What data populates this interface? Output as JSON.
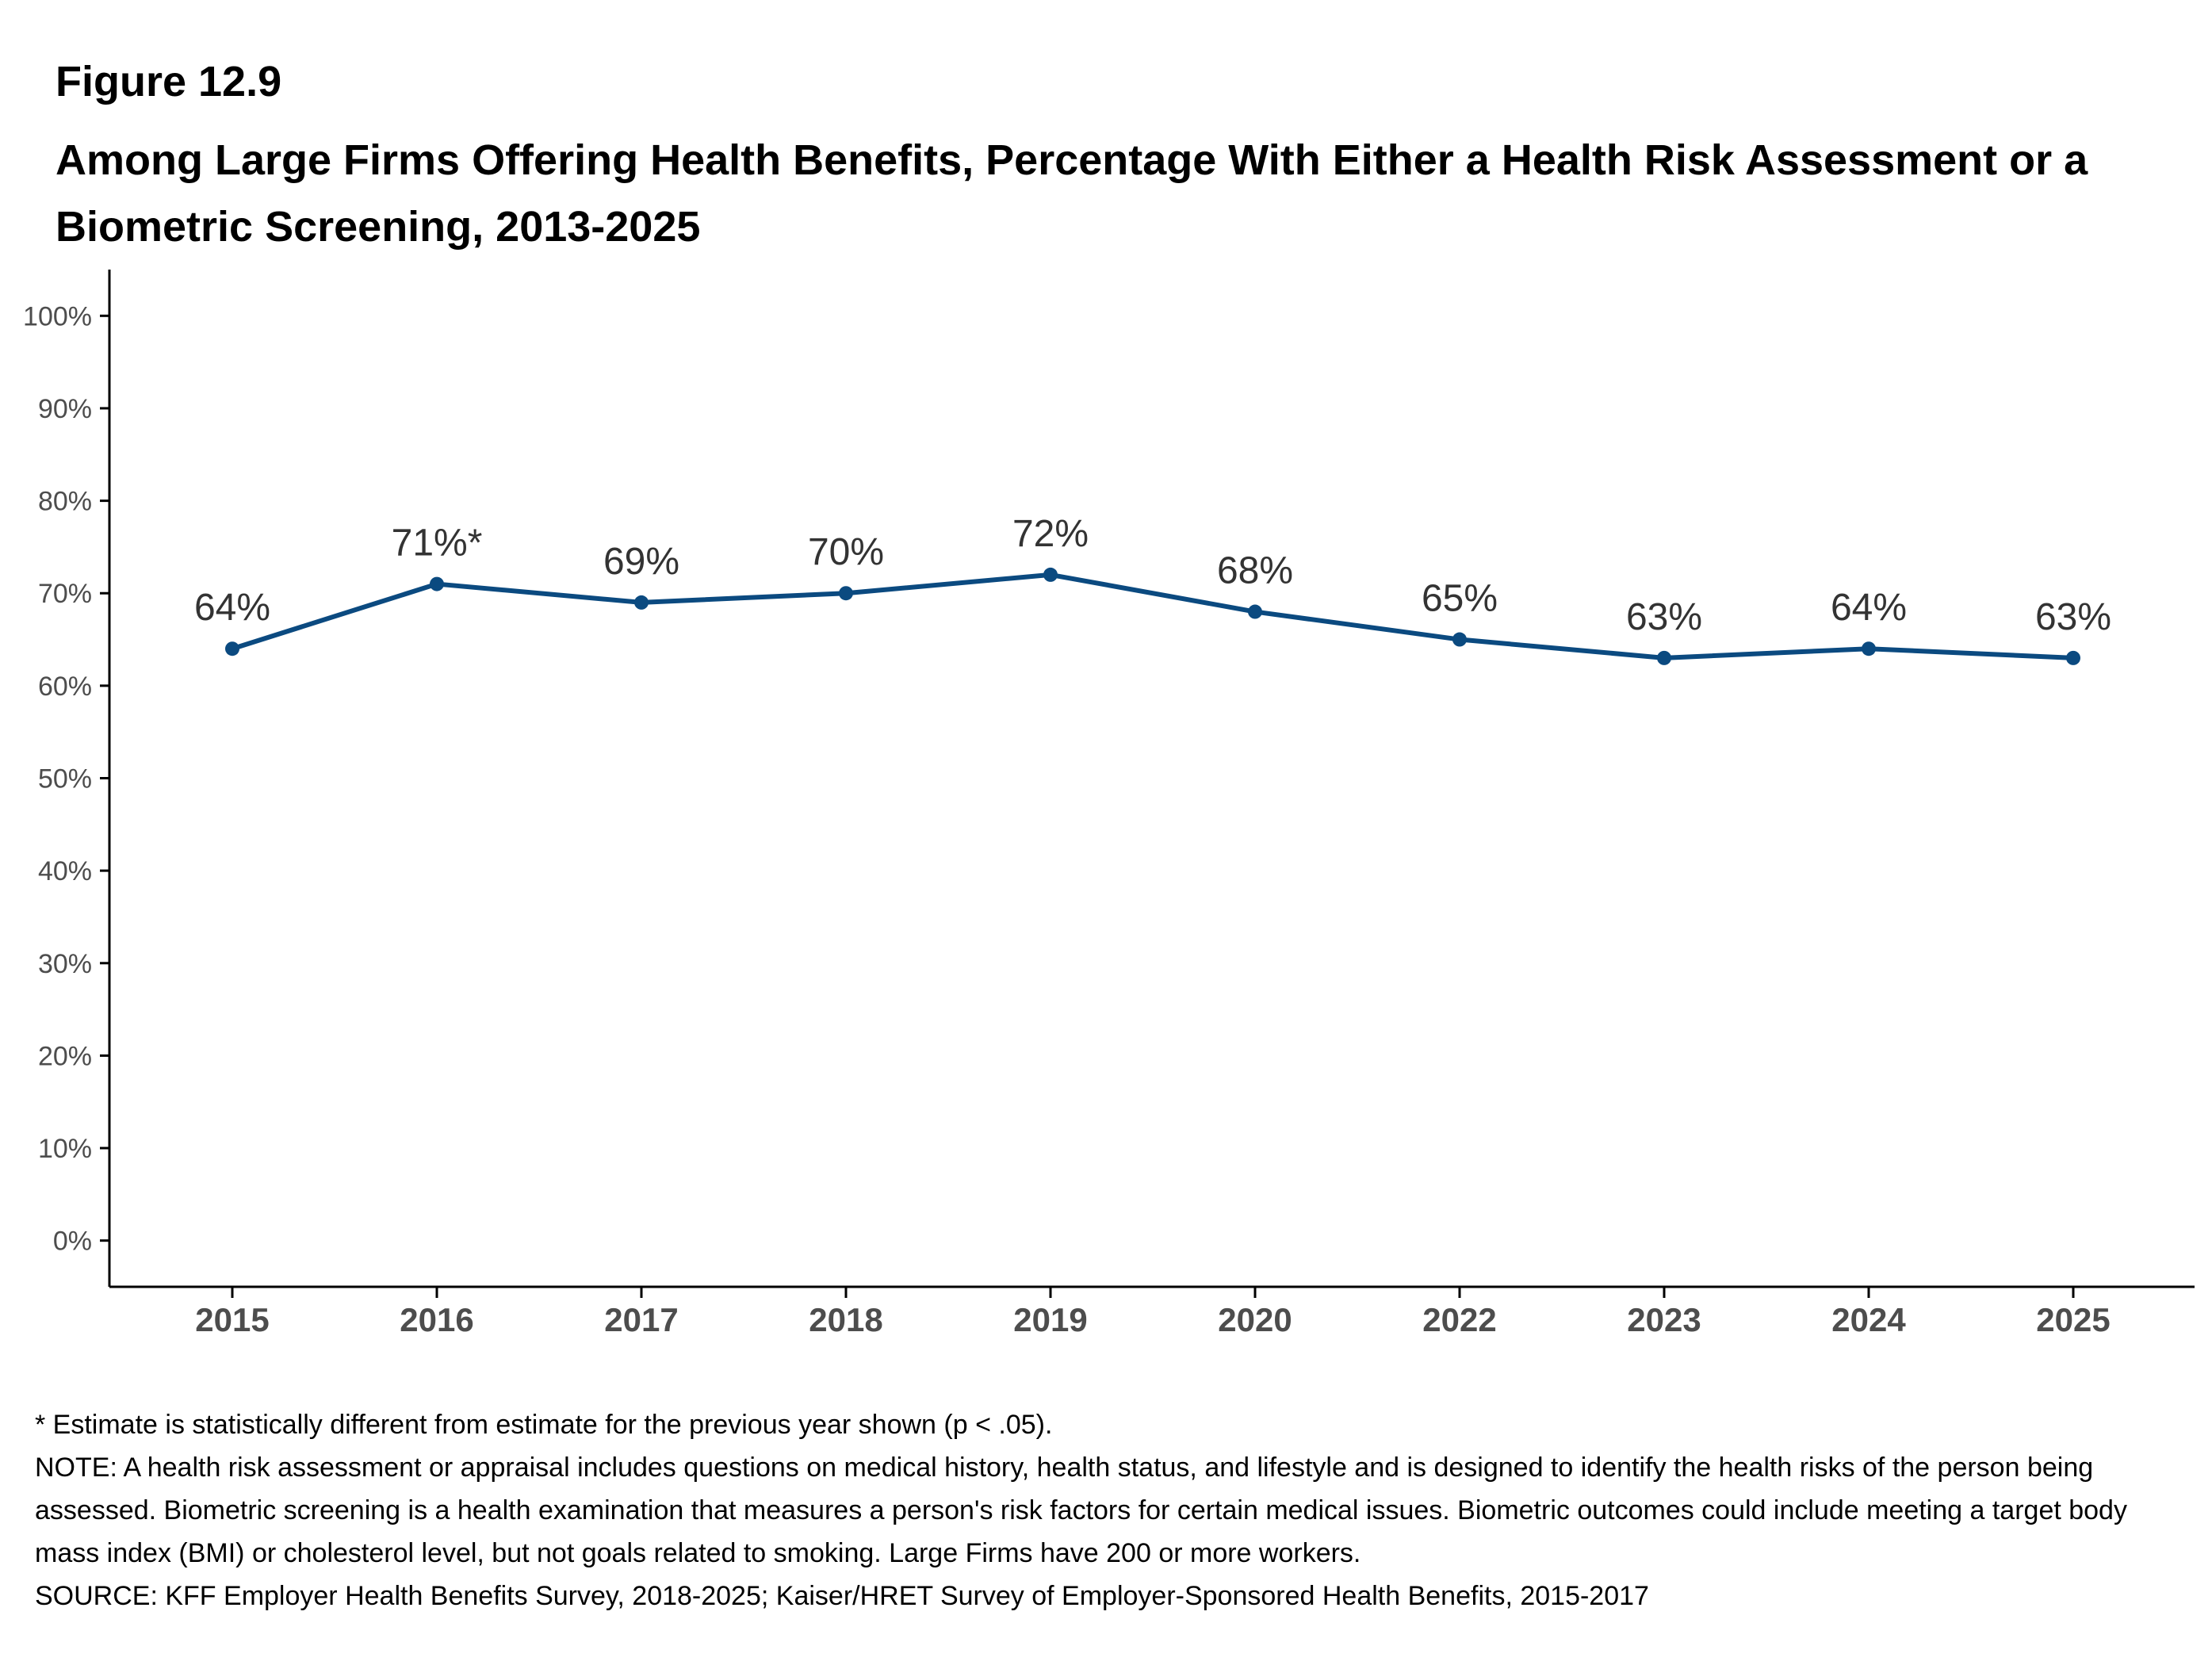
{
  "figure": {
    "label": "Figure 12.9",
    "title": "Among Large Firms Offering Health Benefits, Percentage With Either a Health Risk Assessment or a Biometric Screening, 2013-2025"
  },
  "colors": {
    "series": "#0b4a80",
    "axis": "#000000",
    "tick_text": "#4d4d4d",
    "label_text": "#333333"
  },
  "chart_data": {
    "type": "line",
    "title": "Among Large Firms Offering Health Benefits, Percentage With Either a Health Risk Assessment or a Biometric Screening, 2013-2025",
    "xlabel": "",
    "ylabel": "",
    "categories": [
      "2015",
      "2016",
      "2017",
      "2018",
      "2019",
      "2020",
      "2022",
      "2023",
      "2024",
      "2025"
    ],
    "series": [
      {
        "values": [
          64,
          71,
          69,
          70,
          72,
          68,
          65,
          63,
          64,
          63
        ],
        "labels": [
          "64%",
          "71%*",
          "69%",
          "70%",
          "72%",
          "68%",
          "65%",
          "63%",
          "64%",
          "63%"
        ]
      }
    ],
    "ylim": [
      -5,
      105
    ],
    "yticks": [
      0,
      10,
      20,
      30,
      40,
      50,
      60,
      70,
      80,
      90,
      100
    ],
    "ytick_labels": [
      "0%",
      "10%",
      "20%",
      "30%",
      "40%",
      "50%",
      "60%",
      "70%",
      "80%",
      "90%",
      "100%"
    ],
    "grid": false,
    "legend": "none"
  },
  "notes": {
    "asterisk": "* Estimate is statistically different from estimate for the previous year shown (p < .05).",
    "note": "NOTE: A health risk assessment or appraisal includes questions on medical history, health status, and lifestyle and is designed to identify the health risks of the person being assessed.  Biometric screening is a health examination that measures a person's risk factors for certain medical issues. Biometric outcomes could include meeting a target body mass index (BMI) or cholesterol level, but not goals related to smoking.  Large Firms have 200 or more workers.",
    "source": "SOURCE: KFF Employer Health Benefits Survey, 2018-2025; Kaiser/HRET Survey of Employer-Sponsored Health Benefits, 2015-2017"
  }
}
